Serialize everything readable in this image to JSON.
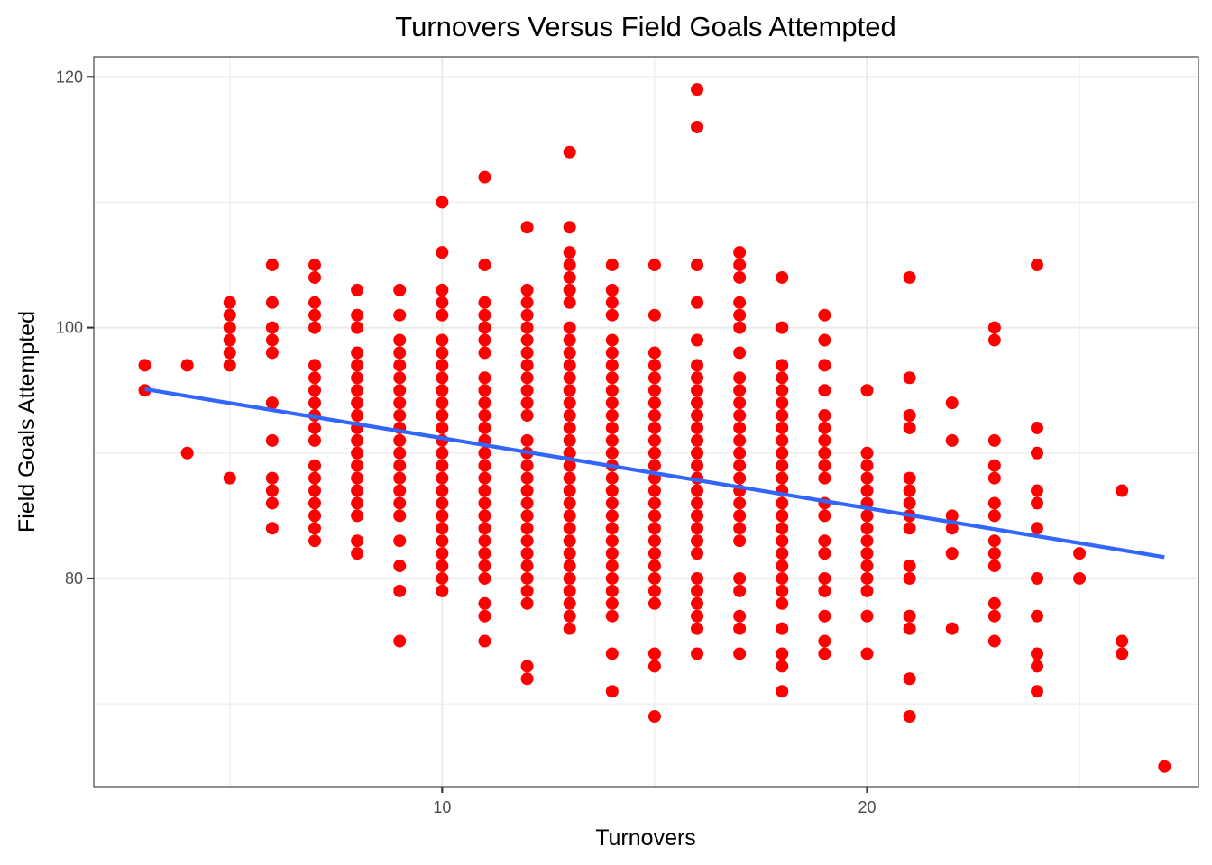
{
  "chart_data": {
    "type": "scatter",
    "title": "Turnovers Versus Field Goals Attempted",
    "xlabel": "Turnovers",
    "ylabel": "Field Goals Attempted",
    "xlim": [
      1.8,
      27.8
    ],
    "ylim": [
      63.4,
      121.6
    ],
    "x_ticks": [
      10,
      20
    ],
    "y_ticks": [
      80,
      100,
      120
    ],
    "x_tick_labels": [
      "10",
      "20"
    ],
    "y_tick_labels": [
      "80",
      "100",
      "120"
    ],
    "grid": true,
    "legend": "none",
    "point_color": "#ff0000",
    "line_color": "#3366ff",
    "trend_line": {
      "x": [
        3,
        27
      ],
      "y": [
        95.1,
        81.7
      ]
    },
    "points": [
      [
        3,
        97
      ],
      [
        3,
        95
      ],
      [
        4,
        97
      ],
      [
        4,
        90
      ],
      [
        5,
        102
      ],
      [
        5,
        101
      ],
      [
        5,
        100
      ],
      [
        5,
        99
      ],
      [
        5,
        98
      ],
      [
        5,
        97
      ],
      [
        5,
        88
      ],
      [
        6,
        105
      ],
      [
        6,
        102
      ],
      [
        6,
        100
      ],
      [
        6,
        99
      ],
      [
        6,
        98
      ],
      [
        6,
        94
      ],
      [
        6,
        91
      ],
      [
        6,
        88
      ],
      [
        6,
        87
      ],
      [
        6,
        86
      ],
      [
        6,
        84
      ],
      [
        7,
        105
      ],
      [
        7,
        104
      ],
      [
        7,
        102
      ],
      [
        7,
        101
      ],
      [
        7,
        100
      ],
      [
        7,
        97
      ],
      [
        7,
        96
      ],
      [
        7,
        95
      ],
      [
        7,
        94
      ],
      [
        7,
        93
      ],
      [
        7,
        92
      ],
      [
        7,
        91
      ],
      [
        7,
        89
      ],
      [
        7,
        88
      ],
      [
        7,
        87
      ],
      [
        7,
        86
      ],
      [
        7,
        85
      ],
      [
        7,
        84
      ],
      [
        7,
        83
      ],
      [
        8,
        103
      ],
      [
        8,
        101
      ],
      [
        8,
        100
      ],
      [
        8,
        98
      ],
      [
        8,
        97
      ],
      [
        8,
        96
      ],
      [
        8,
        95
      ],
      [
        8,
        94
      ],
      [
        8,
        93
      ],
      [
        8,
        92
      ],
      [
        8,
        91
      ],
      [
        8,
        90
      ],
      [
        8,
        89
      ],
      [
        8,
        88
      ],
      [
        8,
        87
      ],
      [
        8,
        86
      ],
      [
        8,
        85
      ],
      [
        8,
        83
      ],
      [
        8,
        82
      ],
      [
        9,
        103
      ],
      [
        9,
        101
      ],
      [
        9,
        99
      ],
      [
        9,
        98
      ],
      [
        9,
        97
      ],
      [
        9,
        96
      ],
      [
        9,
        95
      ],
      [
        9,
        94
      ],
      [
        9,
        93
      ],
      [
        9,
        92
      ],
      [
        9,
        91
      ],
      [
        9,
        90
      ],
      [
        9,
        89
      ],
      [
        9,
        88
      ],
      [
        9,
        87
      ],
      [
        9,
        86
      ],
      [
        9,
        85
      ],
      [
        9,
        83
      ],
      [
        9,
        81
      ],
      [
        9,
        79
      ],
      [
        9,
        75
      ],
      [
        10,
        110
      ],
      [
        10,
        106
      ],
      [
        10,
        103
      ],
      [
        10,
        102
      ],
      [
        10,
        101
      ],
      [
        10,
        99
      ],
      [
        10,
        98
      ],
      [
        10,
        97
      ],
      [
        10,
        96
      ],
      [
        10,
        95
      ],
      [
        10,
        94
      ],
      [
        10,
        93
      ],
      [
        10,
        92
      ],
      [
        10,
        91
      ],
      [
        10,
        90
      ],
      [
        10,
        89
      ],
      [
        10,
        88
      ],
      [
        10,
        87
      ],
      [
        10,
        86
      ],
      [
        10,
        85
      ],
      [
        10,
        84
      ],
      [
        10,
        83
      ],
      [
        10,
        82
      ],
      [
        10,
        81
      ],
      [
        10,
        80
      ],
      [
        10,
        79
      ],
      [
        11,
        112
      ],
      [
        11,
        105
      ],
      [
        11,
        102
      ],
      [
        11,
        101
      ],
      [
        11,
        100
      ],
      [
        11,
        99
      ],
      [
        11,
        98
      ],
      [
        11,
        96
      ],
      [
        11,
        95
      ],
      [
        11,
        94
      ],
      [
        11,
        93
      ],
      [
        11,
        92
      ],
      [
        11,
        91
      ],
      [
        11,
        90
      ],
      [
        11,
        89
      ],
      [
        11,
        88
      ],
      [
        11,
        87
      ],
      [
        11,
        86
      ],
      [
        11,
        85
      ],
      [
        11,
        84
      ],
      [
        11,
        83
      ],
      [
        11,
        82
      ],
      [
        11,
        81
      ],
      [
        11,
        80
      ],
      [
        11,
        78
      ],
      [
        11,
        77
      ],
      [
        11,
        75
      ],
      [
        12,
        108
      ],
      [
        12,
        103
      ],
      [
        12,
        102
      ],
      [
        12,
        101
      ],
      [
        12,
        100
      ],
      [
        12,
        99
      ],
      [
        12,
        98
      ],
      [
        12,
        97
      ],
      [
        12,
        96
      ],
      [
        12,
        95
      ],
      [
        12,
        94
      ],
      [
        12,
        93
      ],
      [
        12,
        91
      ],
      [
        12,
        90
      ],
      [
        12,
        89
      ],
      [
        12,
        88
      ],
      [
        12,
        87
      ],
      [
        12,
        86
      ],
      [
        12,
        85
      ],
      [
        12,
        84
      ],
      [
        12,
        83
      ],
      [
        12,
        82
      ],
      [
        12,
        81
      ],
      [
        12,
        80
      ],
      [
        12,
        79
      ],
      [
        12,
        78
      ],
      [
        12,
        73
      ],
      [
        12,
        72
      ],
      [
        13,
        114
      ],
      [
        13,
        108
      ],
      [
        13,
        106
      ],
      [
        13,
        105
      ],
      [
        13,
        104
      ],
      [
        13,
        103
      ],
      [
        13,
        102
      ],
      [
        13,
        100
      ],
      [
        13,
        99
      ],
      [
        13,
        98
      ],
      [
        13,
        97
      ],
      [
        13,
        96
      ],
      [
        13,
        95
      ],
      [
        13,
        94
      ],
      [
        13,
        93
      ],
      [
        13,
        92
      ],
      [
        13,
        91
      ],
      [
        13,
        90
      ],
      [
        13,
        89
      ],
      [
        13,
        88
      ],
      [
        13,
        87
      ],
      [
        13,
        86
      ],
      [
        13,
        85
      ],
      [
        13,
        84
      ],
      [
        13,
        83
      ],
      [
        13,
        82
      ],
      [
        13,
        81
      ],
      [
        13,
        80
      ],
      [
        13,
        79
      ],
      [
        13,
        78
      ],
      [
        13,
        77
      ],
      [
        13,
        76
      ],
      [
        14,
        105
      ],
      [
        14,
        103
      ],
      [
        14,
        102
      ],
      [
        14,
        101
      ],
      [
        14,
        99
      ],
      [
        14,
        98
      ],
      [
        14,
        97
      ],
      [
        14,
        96
      ],
      [
        14,
        95
      ],
      [
        14,
        94
      ],
      [
        14,
        93
      ],
      [
        14,
        92
      ],
      [
        14,
        91
      ],
      [
        14,
        90
      ],
      [
        14,
        89
      ],
      [
        14,
        88
      ],
      [
        14,
        87
      ],
      [
        14,
        86
      ],
      [
        14,
        85
      ],
      [
        14,
        84
      ],
      [
        14,
        83
      ],
      [
        14,
        82
      ],
      [
        14,
        81
      ],
      [
        14,
        80
      ],
      [
        14,
        79
      ],
      [
        14,
        78
      ],
      [
        14,
        77
      ],
      [
        14,
        74
      ],
      [
        14,
        71
      ],
      [
        15,
        105
      ],
      [
        15,
        101
      ],
      [
        15,
        98
      ],
      [
        15,
        97
      ],
      [
        15,
        96
      ],
      [
        15,
        95
      ],
      [
        15,
        94
      ],
      [
        15,
        93
      ],
      [
        15,
        92
      ],
      [
        15,
        91
      ],
      [
        15,
        90
      ],
      [
        15,
        89
      ],
      [
        15,
        88
      ],
      [
        15,
        87
      ],
      [
        15,
        86
      ],
      [
        15,
        85
      ],
      [
        15,
        84
      ],
      [
        15,
        83
      ],
      [
        15,
        82
      ],
      [
        15,
        81
      ],
      [
        15,
        80
      ],
      [
        15,
        79
      ],
      [
        15,
        78
      ],
      [
        15,
        74
      ],
      [
        15,
        73
      ],
      [
        15,
        69
      ],
      [
        16,
        119
      ],
      [
        16,
        116
      ],
      [
        16,
        105
      ],
      [
        16,
        102
      ],
      [
        16,
        99
      ],
      [
        16,
        97
      ],
      [
        16,
        96
      ],
      [
        16,
        95
      ],
      [
        16,
        94
      ],
      [
        16,
        93
      ],
      [
        16,
        92
      ],
      [
        16,
        91
      ],
      [
        16,
        90
      ],
      [
        16,
        89
      ],
      [
        16,
        88
      ],
      [
        16,
        87
      ],
      [
        16,
        86
      ],
      [
        16,
        85
      ],
      [
        16,
        84
      ],
      [
        16,
        83
      ],
      [
        16,
        82
      ],
      [
        16,
        80
      ],
      [
        16,
        79
      ],
      [
        16,
        78
      ],
      [
        16,
        77
      ],
      [
        16,
        76
      ],
      [
        16,
        74
      ],
      [
        17,
        106
      ],
      [
        17,
        105
      ],
      [
        17,
        104
      ],
      [
        17,
        102
      ],
      [
        17,
        101
      ],
      [
        17,
        100
      ],
      [
        17,
        98
      ],
      [
        17,
        96
      ],
      [
        17,
        95
      ],
      [
        17,
        94
      ],
      [
        17,
        93
      ],
      [
        17,
        92
      ],
      [
        17,
        91
      ],
      [
        17,
        90
      ],
      [
        17,
        89
      ],
      [
        17,
        88
      ],
      [
        17,
        87
      ],
      [
        17,
        86
      ],
      [
        17,
        85
      ],
      [
        17,
        84
      ],
      [
        17,
        83
      ],
      [
        17,
        80
      ],
      [
        17,
        79
      ],
      [
        17,
        77
      ],
      [
        17,
        76
      ],
      [
        17,
        74
      ],
      [
        18,
        104
      ],
      [
        18,
        100
      ],
      [
        18,
        97
      ],
      [
        18,
        96
      ],
      [
        18,
        95
      ],
      [
        18,
        94
      ],
      [
        18,
        93
      ],
      [
        18,
        92
      ],
      [
        18,
        91
      ],
      [
        18,
        90
      ],
      [
        18,
        89
      ],
      [
        18,
        88
      ],
      [
        18,
        87
      ],
      [
        18,
        86
      ],
      [
        18,
        85
      ],
      [
        18,
        84
      ],
      [
        18,
        83
      ],
      [
        18,
        82
      ],
      [
        18,
        81
      ],
      [
        18,
        80
      ],
      [
        18,
        79
      ],
      [
        18,
        78
      ],
      [
        18,
        76
      ],
      [
        18,
        74
      ],
      [
        18,
        73
      ],
      [
        18,
        71
      ],
      [
        19,
        101
      ],
      [
        19,
        99
      ],
      [
        19,
        97
      ],
      [
        19,
        95
      ],
      [
        19,
        93
      ],
      [
        19,
        92
      ],
      [
        19,
        91
      ],
      [
        19,
        90
      ],
      [
        19,
        89
      ],
      [
        19,
        88
      ],
      [
        19,
        86
      ],
      [
        19,
        85
      ],
      [
        19,
        83
      ],
      [
        19,
        82
      ],
      [
        19,
        80
      ],
      [
        19,
        79
      ],
      [
        19,
        77
      ],
      [
        19,
        75
      ],
      [
        19,
        74
      ],
      [
        20,
        95
      ],
      [
        20,
        90
      ],
      [
        20,
        89
      ],
      [
        20,
        88
      ],
      [
        20,
        87
      ],
      [
        20,
        86
      ],
      [
        20,
        85
      ],
      [
        20,
        84
      ],
      [
        20,
        83
      ],
      [
        20,
        82
      ],
      [
        20,
        81
      ],
      [
        20,
        80
      ],
      [
        20,
        79
      ],
      [
        20,
        77
      ],
      [
        20,
        74
      ],
      [
        21,
        104
      ],
      [
        21,
        96
      ],
      [
        21,
        93
      ],
      [
        21,
        92
      ],
      [
        21,
        88
      ],
      [
        21,
        87
      ],
      [
        21,
        86
      ],
      [
        21,
        85
      ],
      [
        21,
        84
      ],
      [
        21,
        81
      ],
      [
        21,
        80
      ],
      [
        21,
        77
      ],
      [
        21,
        76
      ],
      [
        21,
        72
      ],
      [
        21,
        69
      ],
      [
        22,
        94
      ],
      [
        22,
        91
      ],
      [
        22,
        85
      ],
      [
        22,
        84
      ],
      [
        22,
        82
      ],
      [
        22,
        76
      ],
      [
        23,
        100
      ],
      [
        23,
        99
      ],
      [
        23,
        91
      ],
      [
        23,
        89
      ],
      [
        23,
        88
      ],
      [
        23,
        86
      ],
      [
        23,
        85
      ],
      [
        23,
        83
      ],
      [
        23,
        82
      ],
      [
        23,
        81
      ],
      [
        23,
        78
      ],
      [
        23,
        77
      ],
      [
        23,
        75
      ],
      [
        24,
        105
      ],
      [
        24,
        92
      ],
      [
        24,
        90
      ],
      [
        24,
        87
      ],
      [
        24,
        86
      ],
      [
        24,
        84
      ],
      [
        24,
        80
      ],
      [
        24,
        77
      ],
      [
        24,
        74
      ],
      [
        24,
        73
      ],
      [
        24,
        71
      ],
      [
        25,
        82
      ],
      [
        25,
        80
      ],
      [
        26,
        87
      ],
      [
        26,
        75
      ],
      [
        26,
        74
      ],
      [
        27,
        65
      ]
    ]
  }
}
